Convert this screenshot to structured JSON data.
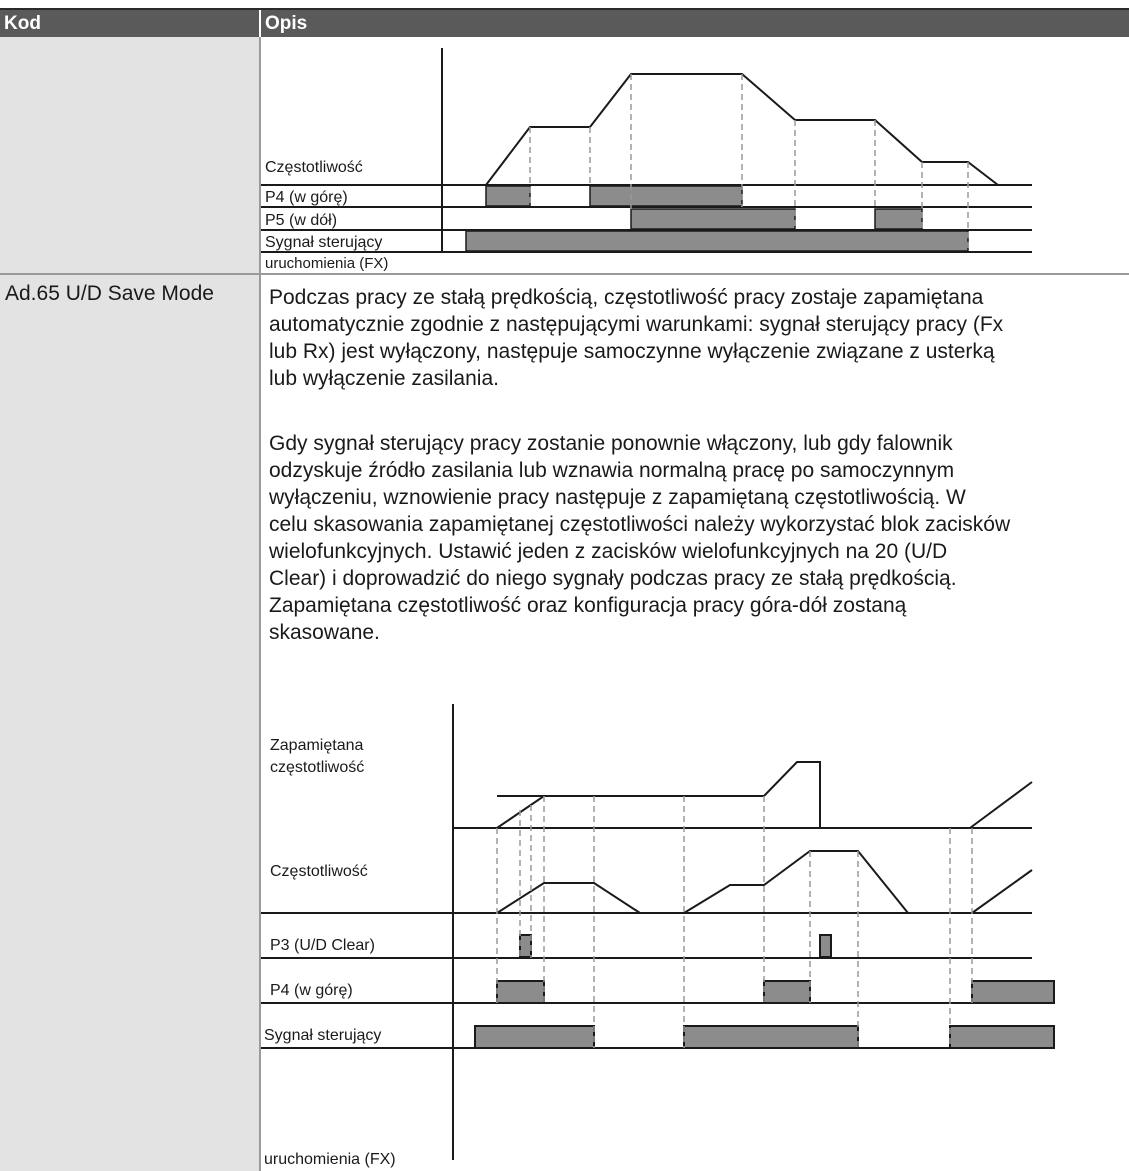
{
  "table": {
    "header": {
      "kod": "Kod",
      "opis": "Opis"
    }
  },
  "diagram1": {
    "labels": {
      "frequency": "Częstotliwość",
      "p4": "P4 (w górę)",
      "p5": "P5 (w dół)",
      "run_signal_line1": "Sygnał sterujący",
      "run_signal_line2": "uruchomienia (FX)"
    }
  },
  "row2": {
    "code": "Ad.65 U/D Save Mode",
    "paragraph1": [
      "Podczas pracy ze stałą prędkością, częstotliwość pracy zostaje zapamiętana",
      "automatycznie zgodnie z następującymi warunkami: sygnał sterujący pracy (Fx",
      "lub Rx) jest wyłączony, następuje samoczynne wyłączenie związane z usterką",
      "lub wyłączenie zasilania."
    ],
    "paragraph2": [
      "Gdy sygnał sterujący pracy zostanie ponownie włączony, lub gdy falownik",
      "odzyskuje źródło zasilania lub wznawia normalną pracę po samoczynnym",
      "wyłączeniu, wznowienie pracy następuje z zapamiętaną częstotliwością. W",
      "celu skasowania zapamiętanej częstotliwości należy wykorzystać blok zacisków",
      "wielofunkcyjnych. Ustawić jeden z zacisków wielofunkcyjnych na 20 (U/D",
      "Clear) i doprowadzić do niego sygnały podczas pracy ze stałą prędkością.",
      "Zapamiętana częstotliwość oraz konfiguracja pracy góra-dół zostaną",
      "skasowane."
    ]
  },
  "diagram2": {
    "labels": {
      "saved_freq_line1": "Zapamiętana",
      "saved_freq_line2": "częstotliwość",
      "frequency": "Częstotliwość",
      "p3": "P3 (U/D Clear)",
      "p4": "P4 (w górę)",
      "run_signal_line1": "Sygnał sterujący",
      "run_signal_line2": "uruchomienia (FX)"
    }
  }
}
